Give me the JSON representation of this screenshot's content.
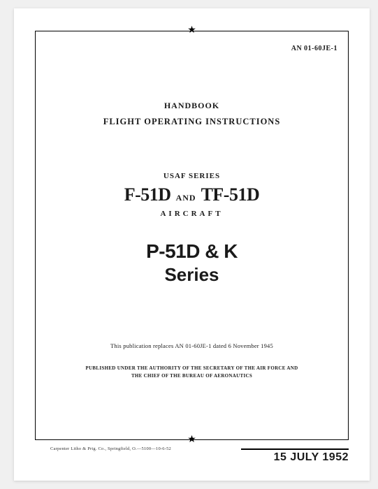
{
  "doc_id": "AN 01-60JE-1",
  "title": {
    "handbook": "HANDBOOK",
    "foi": "FLIGHT OPERATING INSTRUCTIONS"
  },
  "series": {
    "usaf": "USAF SERIES",
    "model_a": "F-51D",
    "and": "AND",
    "model_b": "TF-51D",
    "aircraft": "AIRCRAFT"
  },
  "secondary": {
    "models": "P-51D & K",
    "label": "Series"
  },
  "replaces": "This publication replaces AN 01-60JE-1 dated 6 November 1945",
  "authority": {
    "line1": "PUBLISHED UNDER THE AUTHORITY OF THE SECRETARY OF THE AIR FORCE AND",
    "line2": "THE CHIEF OF THE BUREAU OF AERONAUTICS"
  },
  "printer": "Carpenter Litho & Prtg. Co., Springfield, O.—5100—10-6-52",
  "date": "15 JULY 1952",
  "star_glyph": "★",
  "colors": {
    "text": "#1a1a1a",
    "page_bg": "#ffffff",
    "outer_bg": "#f0f0f0",
    "rule": "#000000"
  }
}
